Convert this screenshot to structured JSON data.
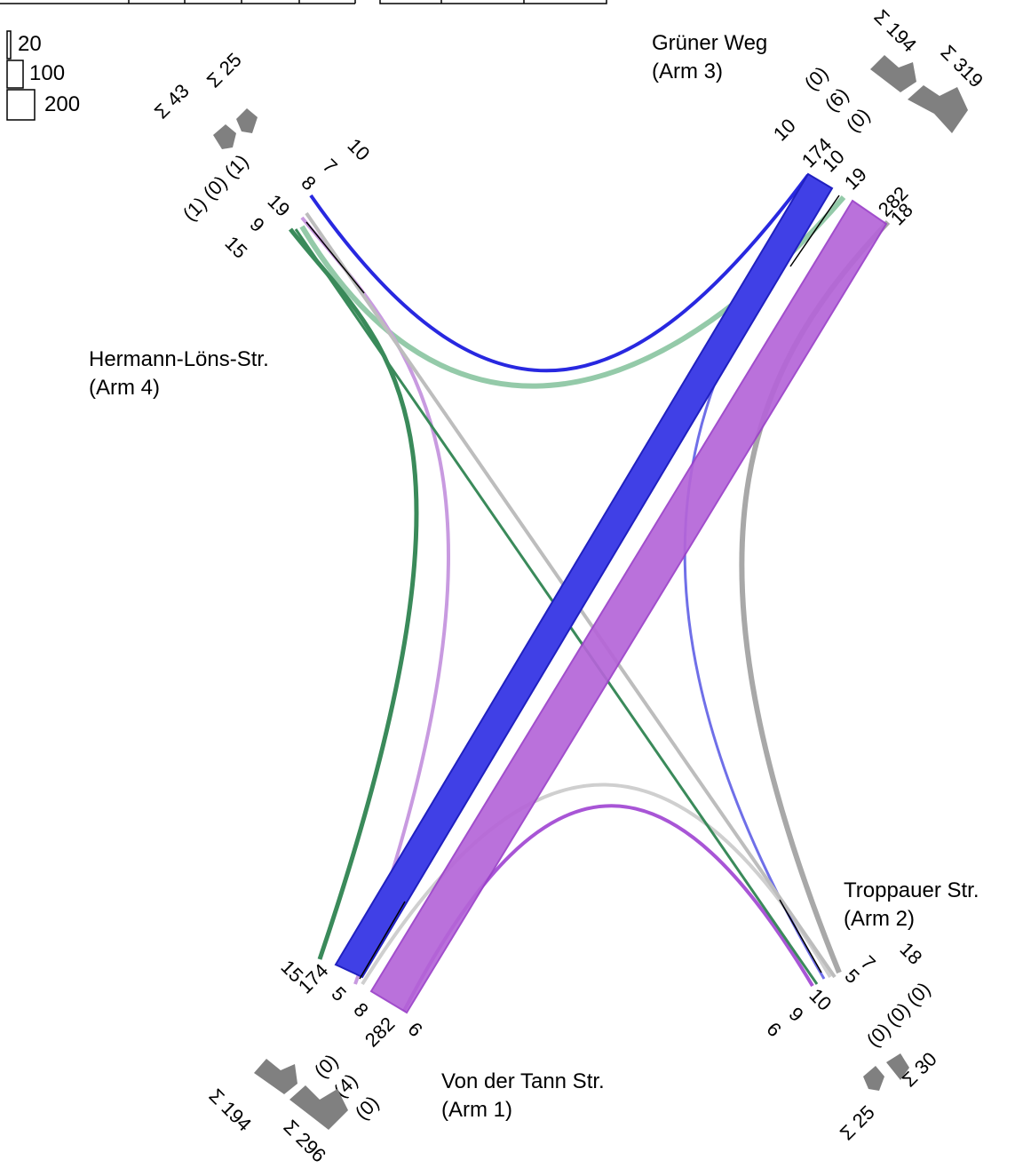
{
  "colors": {
    "blue": "#2828e0",
    "purple": "#a855d6",
    "green": "#3a8a5a",
    "lightgreen": "#88c4a0",
    "gray": "#a8a8a8",
    "lightgray": "#cfcfcf",
    "shape": "#808080"
  },
  "legend": [
    "20",
    "100",
    "200"
  ],
  "arms": {
    "arm1": {
      "name": "Von der Tann Str.",
      "arm": "(Arm 1)",
      "counts": [
        "15",
        "174",
        "5",
        "8",
        "282",
        "6"
      ],
      "pedestrians": [
        "(0)",
        "(4)",
        "(0)"
      ],
      "sum_in": "Σ 194",
      "sum_out": "Σ 296"
    },
    "arm2": {
      "name": "Troppauer Str.",
      "arm": "(Arm 2)",
      "counts": [
        "6",
        "9",
        "10",
        "5",
        "7",
        "18"
      ],
      "pedestrians": [
        "(0)",
        "(0)",
        "(0)"
      ],
      "sum_in": "Σ 25",
      "sum_out": "Σ 30"
    },
    "arm3": {
      "name": "Grüner Weg",
      "arm": "(Arm 3)",
      "counts": [
        "10",
        "174",
        "10",
        "19",
        "282",
        "18"
      ],
      "pedestrians": [
        "(0)",
        "(6)",
        "(0)"
      ],
      "sum_in": "Σ 194",
      "sum_out": "Σ 319"
    },
    "arm4": {
      "name": "Hermann-Löns-Str.",
      "arm": "(Arm 4)",
      "counts": [
        "15",
        "9",
        "19",
        "8",
        "7",
        "10"
      ],
      "pedestrians": [
        "(1)",
        "(0)",
        "(1)"
      ],
      "sum_in": "Σ 43",
      "sum_out": "Σ 25"
    }
  }
}
